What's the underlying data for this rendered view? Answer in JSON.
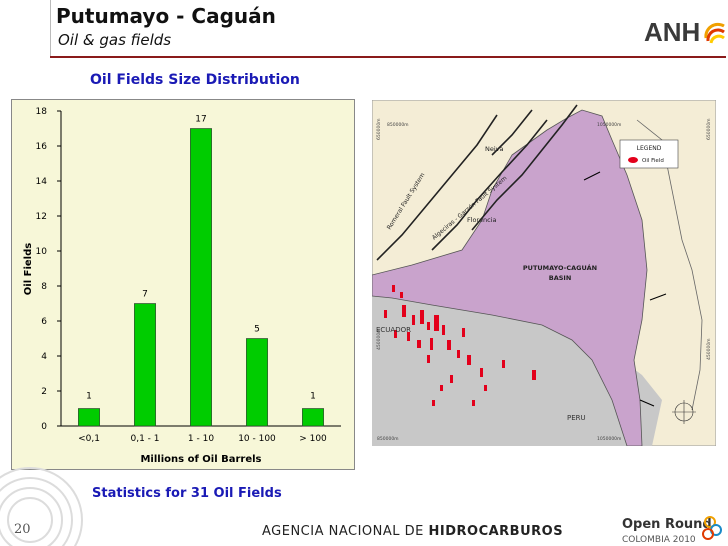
{
  "header": {
    "title": "Putumayo - Caguán",
    "subtitle": "Oil & gas fields",
    "logo_text": "ANH"
  },
  "chart_data": {
    "type": "bar",
    "title": "Oil Fields Size Distribution",
    "xlabel": "Millions of Oil Barrels",
    "ylabel": "Oil Fields",
    "categories": [
      "<0,1",
      "0,1 - 1",
      "1 - 10",
      "10 - 100",
      "> 100"
    ],
    "values": [
      1,
      7,
      17,
      5,
      1
    ],
    "ylim": [
      0,
      18
    ],
    "yticks": [
      0,
      2,
      4,
      6,
      8,
      10,
      12,
      14,
      16,
      18
    ],
    "bar_color": "#00cc00",
    "grid": false
  },
  "footer": {
    "stats": "Statistics for 31 Oil Fields",
    "page_number": "20",
    "agency_prefix": "AGENCIA NACIONAL DE ",
    "agency_bold": "HIDROCARBUROS",
    "brand_line1": "Open Round",
    "brand_line2": "COLOMBIA 2010"
  },
  "map": {
    "basin_label_1": "PUTUMAYO-CAGUÁN",
    "basin_label_2": "BASIN",
    "country_1": "ECUADOR",
    "country_2": "PERU",
    "city_1": "Neiva",
    "city_2": "Florencia",
    "fault_1": "Romeral Fault System",
    "fault_2": "Algeciras - Garzón Fault System",
    "legend_title": "LEGEND",
    "legend_item": "Oil Field",
    "coord_top_left": "850000m",
    "coord_top_right": "1050000m",
    "coord_bottom_left": "850000m",
    "coord_bottom_right": "1050000m",
    "coord_left_top": "650000m",
    "coord_left_mid": "450000m",
    "coord_right_top": "650000m",
    "coord_right_mid": "450000m",
    "colors": {
      "basin": "#c9a3cc",
      "ecuador_peru": "#c8c8c8",
      "land": "#f4edd6",
      "oil": "#e3001b"
    }
  }
}
